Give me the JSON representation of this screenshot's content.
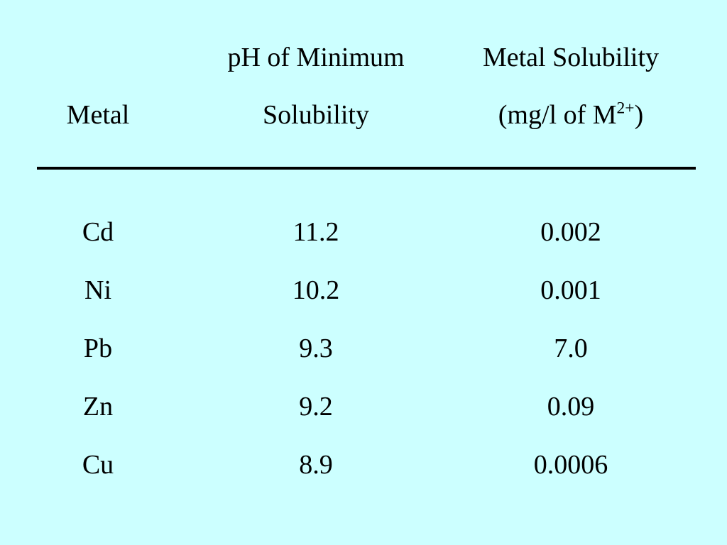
{
  "table": {
    "headers": {
      "metal": {
        "line1": "",
        "line2": "Metal"
      },
      "ph": {
        "line1": "pH of Minimum",
        "line2": "Solubility"
      },
      "solubility": {
        "line1": "Metal Solubility",
        "line2_prefix": "(mg/l of M",
        "line2_sup": "2+",
        "line2_suffix": ")"
      }
    },
    "rows": [
      {
        "metal": "Cd",
        "ph": "11.2",
        "solubility": "0.002"
      },
      {
        "metal": "Ni",
        "ph": "10.2",
        "solubility": "0.001"
      },
      {
        "metal": "Pb",
        "ph": "9.3",
        "solubility": "7.0"
      },
      {
        "metal": "Zn",
        "ph": "9.2",
        "solubility": "0.09"
      },
      {
        "metal": "Cu",
        "ph": "8.9",
        "solubility": "0.0006"
      }
    ]
  },
  "colors": {
    "background": "#ccffff",
    "text": "#000000",
    "rule": "#000000"
  }
}
